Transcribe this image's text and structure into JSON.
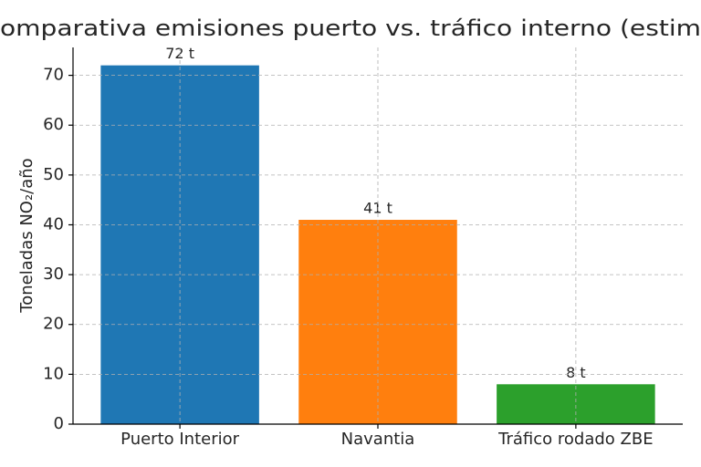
{
  "chart_data": {
    "type": "bar",
    "title": "omparativa emisiones puerto vs. tráfico interno (estim",
    "y_label": "Toneladas NO₂/año",
    "categories": [
      "Puerto Interior",
      "Navantia",
      "Tráfico rodado ZBE"
    ],
    "values": [
      72,
      41,
      8
    ],
    "value_labels": [
      "72 t",
      "41 t",
      "8 t"
    ],
    "colors": [
      "#1f77b4",
      "#ff7f0e",
      "#2ca02c"
    ],
    "ylim": [
      0,
      75.6
    ],
    "yticks": [
      0,
      10,
      20,
      30,
      40,
      50,
      60,
      70
    ],
    "grid": true
  }
}
